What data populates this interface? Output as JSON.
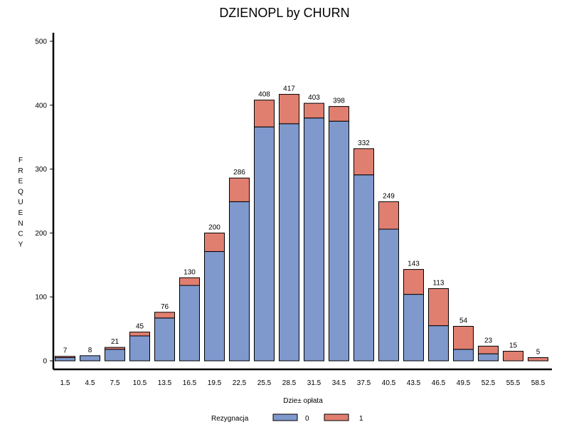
{
  "chart_data": {
    "type": "bar",
    "stacked": true,
    "title": "DZIENOPL by CHURN",
    "xlabel": "Dzie± opłata",
    "ylabel": "FREQUENCY",
    "ylim": [
      0,
      500
    ],
    "yticks": [
      0,
      100,
      200,
      300,
      400,
      500
    ],
    "grid": false,
    "legend": {
      "title": "Rezygnacja",
      "position": "bottom"
    },
    "categories": [
      "1.5",
      "4.5",
      "7.5",
      "10.5",
      "13.5",
      "16.5",
      "19.5",
      "22.5",
      "25.5",
      "28.5",
      "31.5",
      "34.5",
      "37.5",
      "40.5",
      "43.5",
      "46.5",
      "49.5",
      "52.5",
      "55.5",
      "58.5"
    ],
    "series": [
      {
        "name": "0",
        "color": "#7f99cd",
        "values": [
          5,
          8,
          18,
          39,
          67,
          118,
          171,
          249,
          366,
          371,
          380,
          375,
          291,
          206,
          104,
          55,
          18,
          11,
          0,
          0
        ]
      },
      {
        "name": "1",
        "color": "#e07f70",
        "values": [
          2,
          0,
          3,
          6,
          9,
          12,
          29,
          37,
          42,
          46,
          23,
          23,
          41,
          43,
          39,
          58,
          36,
          12,
          15,
          5
        ]
      }
    ],
    "totals": [
      7,
      8,
      21,
      45,
      76,
      130,
      200,
      286,
      408,
      417,
      403,
      398,
      332,
      249,
      143,
      113,
      54,
      23,
      15,
      5
    ]
  }
}
